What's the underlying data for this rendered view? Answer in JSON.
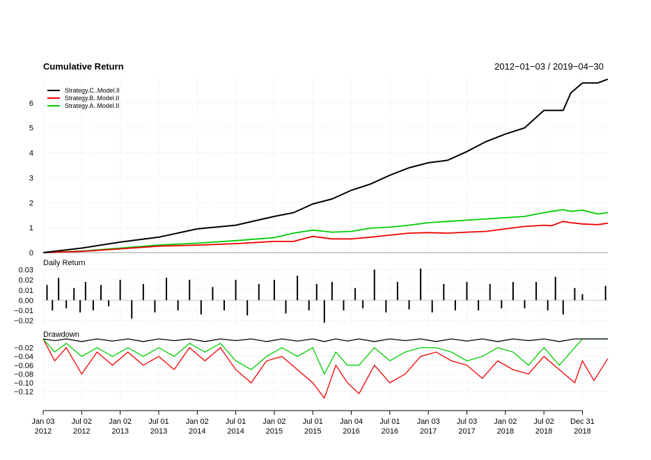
{
  "title": "Cumulative Return",
  "date_range": "2012−01−03 / 2019−04−30",
  "colors": {
    "c": "#000000",
    "b": "#ee0000",
    "a": "#00cc00",
    "grid": "#d9d9d9",
    "axis": "#555555"
  },
  "chart_data": [
    {
      "type": "line",
      "title": "Cumulative Return",
      "ylim": [
        0,
        7
      ],
      "y_ticks": [
        "0",
        "1",
        "2",
        "3",
        "4",
        "5",
        "6"
      ],
      "grid": true,
      "legend_position": "top-left",
      "x": [
        2012.0,
        2012.5,
        2013.0,
        2013.5,
        2014.0,
        2014.5,
        2015.0,
        2015.25,
        2015.5,
        2015.75,
        2016.0,
        2016.25,
        2016.5,
        2016.75,
        2017.0,
        2017.25,
        2017.5,
        2017.75,
        2018.0,
        2018.25,
        2018.5,
        2018.6,
        2018.75,
        2018.85,
        2019.0,
        2019.2,
        2019.33
      ],
      "series": [
        {
          "name": "Strategy.C..Model.II",
          "color": "#000000",
          "values": [
            0.0,
            0.18,
            0.42,
            0.62,
            0.95,
            1.1,
            1.45,
            1.6,
            1.95,
            2.15,
            2.5,
            2.75,
            3.1,
            3.4,
            3.6,
            3.7,
            4.05,
            4.45,
            4.75,
            5.0,
            5.7,
            5.7,
            5.7,
            6.4,
            6.8,
            6.8,
            6.95
          ]
        },
        {
          "name": "Strategy.B..Model.II",
          "color": "#ee0000",
          "values": [
            0.0,
            0.05,
            0.15,
            0.26,
            0.3,
            0.36,
            0.45,
            0.45,
            0.65,
            0.55,
            0.55,
            0.62,
            0.7,
            0.78,
            0.8,
            0.78,
            0.82,
            0.85,
            0.95,
            1.05,
            1.1,
            1.08,
            1.25,
            1.2,
            1.15,
            1.12,
            1.18
          ]
        },
        {
          "name": "Strategy.A..Model.II",
          "color": "#00cc00",
          "values": [
            0.0,
            0.06,
            0.18,
            0.3,
            0.38,
            0.48,
            0.6,
            0.78,
            0.9,
            0.82,
            0.85,
            0.98,
            1.02,
            1.1,
            1.2,
            1.25,
            1.3,
            1.35,
            1.4,
            1.45,
            1.6,
            1.65,
            1.72,
            1.65,
            1.7,
            1.55,
            1.6
          ]
        }
      ]
    },
    {
      "type": "bar",
      "title": "Daily Return",
      "ylim": [
        -0.025,
        0.031
      ],
      "y_ticks": [
        "0.03",
        "0.02",
        "0.01",
        "0.00",
        "−0.01",
        "−0.02"
      ],
      "grid": true,
      "x": [
        2012.05,
        2012.12,
        2012.2,
        2012.3,
        2012.4,
        2012.48,
        2012.55,
        2012.65,
        2012.75,
        2012.85,
        2013.0,
        2013.15,
        2013.3,
        2013.45,
        2013.6,
        2013.75,
        2013.9,
        2014.05,
        2014.2,
        2014.35,
        2014.5,
        2014.65,
        2014.8,
        2015.0,
        2015.15,
        2015.3,
        2015.45,
        2015.55,
        2015.65,
        2015.75,
        2015.9,
        2016.05,
        2016.15,
        2016.3,
        2016.45,
        2016.6,
        2016.75,
        2016.9,
        2017.05,
        2017.2,
        2017.35,
        2017.5,
        2017.65,
        2017.8,
        2017.95,
        2018.1,
        2018.25,
        2018.4,
        2018.55,
        2018.65,
        2018.75,
        2018.9,
        2019.0,
        2019.3
      ],
      "values": [
        0.015,
        -0.01,
        0.022,
        -0.008,
        0.012,
        -0.012,
        0.018,
        -0.01,
        0.015,
        -0.006,
        0.02,
        -0.018,
        0.016,
        -0.012,
        0.022,
        -0.01,
        0.02,
        -0.014,
        0.013,
        -0.01,
        0.02,
        -0.015,
        0.016,
        0.02,
        -0.013,
        0.024,
        -0.01,
        0.016,
        -0.022,
        0.018,
        -0.01,
        0.012,
        -0.008,
        0.03,
        -0.012,
        0.018,
        -0.009,
        0.031,
        -0.012,
        0.016,
        -0.01,
        0.018,
        -0.01,
        0.016,
        -0.008,
        0.018,
        -0.008,
        0.018,
        -0.01,
        0.023,
        -0.014,
        0.012,
        0.006,
        0.014
      ]
    },
    {
      "type": "line",
      "title": "Drawdown",
      "ylim": [
        -0.135,
        0.0
      ],
      "y_ticks": [
        "−0.02",
        "−0.04",
        "−0.06",
        "−0.08",
        "−0.10",
        "−0.12"
      ],
      "grid": true,
      "x": [
        2012.0,
        2012.15,
        2012.3,
        2012.5,
        2012.7,
        2012.9,
        2013.1,
        2013.3,
        2013.5,
        2013.7,
        2013.9,
        2014.1,
        2014.3,
        2014.5,
        2014.7,
        2014.9,
        2015.1,
        2015.3,
        2015.5,
        2015.65,
        2015.8,
        2015.95,
        2016.1,
        2016.3,
        2016.5,
        2016.7,
        2016.9,
        2017.1,
        2017.3,
        2017.5,
        2017.7,
        2017.9,
        2018.1,
        2018.3,
        2018.5,
        2018.7,
        2018.9,
        2019.0,
        2019.15,
        2019.33
      ],
      "series": [
        {
          "name": "Strategy.C..Model.II",
          "color": "#000000",
          "values": [
            0.0,
            -0.004,
            0.0,
            -0.006,
            0.0,
            -0.005,
            0.0,
            -0.006,
            0.0,
            -0.004,
            0.0,
            -0.006,
            0.0,
            -0.004,
            0.0,
            -0.006,
            0.0,
            -0.005,
            0.0,
            -0.006,
            0.0,
            -0.005,
            0.0,
            -0.006,
            0.0,
            -0.004,
            0.0,
            -0.006,
            0.0,
            -0.005,
            0.0,
            -0.006,
            0.0,
            -0.004,
            0.0,
            -0.006,
            0.0,
            0.0,
            0.0,
            0.0
          ]
        },
        {
          "name": "Strategy.B..Model.II",
          "color": "#ee0000",
          "values": [
            0.0,
            -0.05,
            -0.02,
            -0.08,
            -0.03,
            -0.06,
            -0.03,
            -0.06,
            -0.04,
            -0.07,
            -0.02,
            -0.05,
            -0.02,
            -0.07,
            -0.1,
            -0.05,
            -0.04,
            -0.07,
            -0.1,
            -0.135,
            -0.06,
            -0.1,
            -0.125,
            -0.06,
            -0.1,
            -0.08,
            -0.04,
            -0.03,
            -0.05,
            -0.06,
            -0.09,
            -0.05,
            -0.07,
            -0.08,
            -0.04,
            -0.07,
            -0.1,
            -0.05,
            -0.095,
            -0.045
          ]
        },
        {
          "name": "Strategy.A..Model.II",
          "color": "#00cc00",
          "values": [
            0.0,
            -0.03,
            -0.01,
            -0.04,
            -0.02,
            -0.04,
            -0.02,
            -0.04,
            -0.02,
            -0.04,
            -0.01,
            -0.03,
            -0.01,
            -0.05,
            -0.07,
            -0.04,
            -0.02,
            -0.04,
            -0.02,
            -0.08,
            -0.03,
            -0.06,
            -0.06,
            -0.02,
            -0.05,
            -0.03,
            -0.02,
            -0.02,
            -0.03,
            -0.05,
            -0.04,
            -0.02,
            -0.03,
            -0.06,
            -0.02,
            -0.06,
            -0.02,
            0.0,
            0.0,
            0.0
          ]
        }
      ]
    }
  ],
  "x_axis": {
    "range": [
      2012.0,
      2019.33
    ],
    "ticks": [
      {
        "at": 2012.0,
        "label1": "Jan 03",
        "label2": "2012"
      },
      {
        "at": 2012.5,
        "label1": "Jul 02",
        "label2": "2012"
      },
      {
        "at": 2013.0,
        "label1": "Jan 02",
        "label2": "2013"
      },
      {
        "at": 2013.5,
        "label1": "Jul 01",
        "label2": "2013"
      },
      {
        "at": 2014.0,
        "label1": "Jan 02",
        "label2": "2014"
      },
      {
        "at": 2014.5,
        "label1": "Jul 01",
        "label2": "2014"
      },
      {
        "at": 2015.0,
        "label1": "Jan 02",
        "label2": "2015"
      },
      {
        "at": 2015.5,
        "label1": "Jul 01",
        "label2": "2015"
      },
      {
        "at": 2016.0,
        "label1": "Jan 04",
        "label2": "2016"
      },
      {
        "at": 2016.5,
        "label1": "Jul 01",
        "label2": "2016"
      },
      {
        "at": 2017.0,
        "label1": "Jan 03",
        "label2": "2017"
      },
      {
        "at": 2017.5,
        "label1": "Jul 03",
        "label2": "2017"
      },
      {
        "at": 2018.0,
        "label1": "Jan 02",
        "label2": "2018"
      },
      {
        "at": 2018.5,
        "label1": "Jul 02",
        "label2": "2018"
      },
      {
        "at": 2019.0,
        "label1": "Dec 31",
        "label2": "2018"
      }
    ]
  }
}
